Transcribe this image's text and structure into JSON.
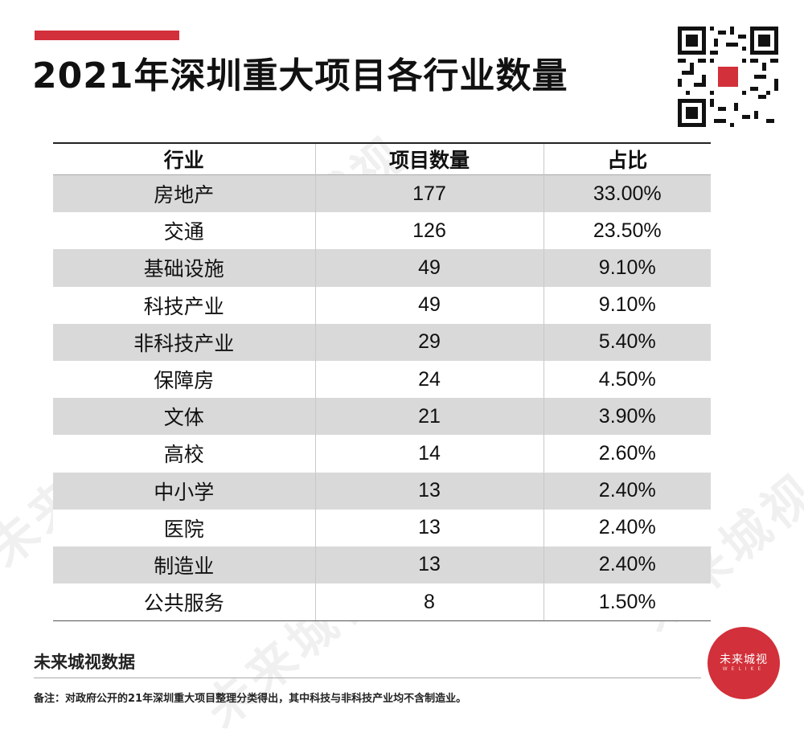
{
  "header": {
    "title": "2021年深圳重大项目各行业数量"
  },
  "table": {
    "columns": [
      "行业",
      "项目数量",
      "占比"
    ],
    "rows": [
      [
        "房地产",
        "177",
        "33.00%"
      ],
      [
        "交通",
        "126",
        "23.50%"
      ],
      [
        "基础设施",
        "49",
        "9.10%"
      ],
      [
        "科技产业",
        "49",
        "9.10%"
      ],
      [
        "非科技产业",
        "29",
        "5.40%"
      ],
      [
        "保障房",
        "24",
        "4.50%"
      ],
      [
        "文体",
        "21",
        "3.90%"
      ],
      [
        "高校",
        "14",
        "2.60%"
      ],
      [
        "中小学",
        "13",
        "2.40%"
      ],
      [
        "医院",
        "13",
        "2.40%"
      ],
      [
        "制造业",
        "13",
        "2.40%"
      ],
      [
        "公共服务",
        "8",
        "1.50%"
      ]
    ]
  },
  "footer": {
    "source": "未来城视数据",
    "note": "备注：对政府公开的21年深圳重大项目整理分类得出，其中科技与非科技产业均不含制造业。"
  },
  "seal": {
    "text": "未来城视",
    "sub": "WELIKE"
  },
  "watermark_text": "未来城视",
  "colors": {
    "accent": "#d2303a",
    "row_shade": "#d9d9d9"
  }
}
